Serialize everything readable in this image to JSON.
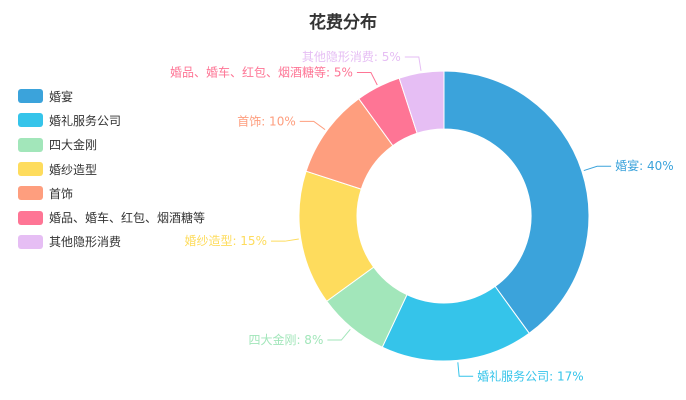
{
  "chart_data": {
    "type": "pie",
    "title": "花费分布",
    "legend_position": "left",
    "series": [
      {
        "name": "婚宴",
        "value": 40,
        "color": "#3ba3db",
        "label": "婚宴: 40%"
      },
      {
        "name": "婚礼服务公司",
        "value": 17,
        "color": "#35c4ea",
        "label": "婚礼服务公司: 17%"
      },
      {
        "name": "四大金刚",
        "value": 8,
        "color": "#a2e6ba",
        "label": "四大金刚: 8%"
      },
      {
        "name": "婚纱造型",
        "value": 15,
        "color": "#fedc5d",
        "label": "婚纱造型: 15%"
      },
      {
        "name": "首饰",
        "value": 10,
        "color": "#fe9e7e",
        "label": "首饰: 10%"
      },
      {
        "name": "婚品、婚车、红包、烟酒糖等",
        "value": 5,
        "color": "#fe7595",
        "label": "婚品、婚车、红包、烟酒糖等: 5%"
      },
      {
        "name": "其他隐形消费",
        "value": 5,
        "color": "#e6bef4",
        "label": "其他隐形消费: 5%"
      }
    ]
  }
}
